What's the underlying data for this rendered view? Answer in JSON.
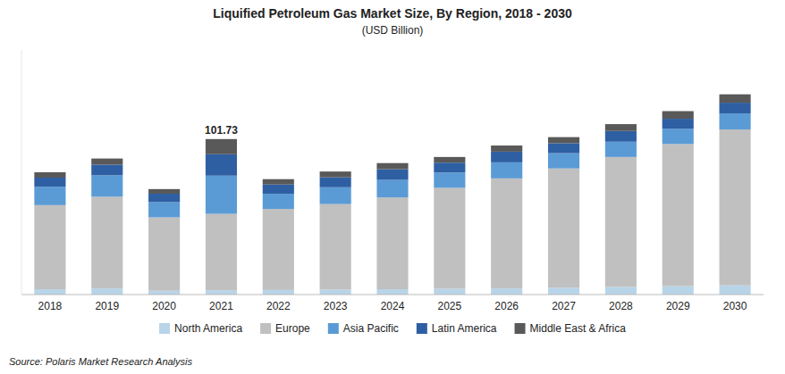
{
  "chart_data": {
    "type": "bar",
    "stacked": true,
    "title": "Liquified Petroleum Gas Market Size, By Region, 2018 - 2030",
    "subtitle": "(USD Billion)",
    "source": "Source: Polaris  Market Research Analysis",
    "categories": [
      "2018",
      "2019",
      "2020",
      "2021",
      "2022",
      "2023",
      "2024",
      "2025",
      "2026",
      "2027",
      "2028",
      "2029",
      "2030"
    ],
    "series": [
      {
        "name": "North America",
        "color": "#b8d4e8",
        "values": [
          3.5,
          4.0,
          2.5,
          2.8,
          3.0,
          3.2,
          3.5,
          3.8,
          4.0,
          4.5,
          5.0,
          5.5,
          6.0
        ]
      },
      {
        "name": "Europe",
        "color": "#c0c0c0",
        "values": [
          55.0,
          60.0,
          48.0,
          50.0,
          53.0,
          56.0,
          60.0,
          66.0,
          72.0,
          78.0,
          85.0,
          93.0,
          102.0
        ]
      },
      {
        "name": "Asia Pacific",
        "color": "#5b9bd5",
        "values": [
          12.0,
          14.0,
          10.0,
          25.0,
          10.0,
          11.0,
          11.5,
          10.0,
          10.5,
          10.0,
          10.0,
          10.0,
          10.5
        ]
      },
      {
        "name": "Latin America",
        "color": "#2e5fa3",
        "values": [
          6.0,
          7.0,
          5.5,
          14.0,
          6.0,
          6.5,
          7.0,
          6.5,
          7.0,
          6.5,
          7.0,
          6.5,
          7.0
        ]
      },
      {
        "name": "Middle East & Africa",
        "color": "#595959",
        "values": [
          3.5,
          4.0,
          3.0,
          9.93,
          3.5,
          3.8,
          4.0,
          3.7,
          4.0,
          4.0,
          4.5,
          5.0,
          5.5
        ]
      }
    ],
    "annotations": [
      {
        "category": "2021",
        "text": "101.73"
      }
    ],
    "ylim": [
      0,
      160
    ],
    "grid": false,
    "legend": "bottom",
    "tick_labels": "x"
  }
}
